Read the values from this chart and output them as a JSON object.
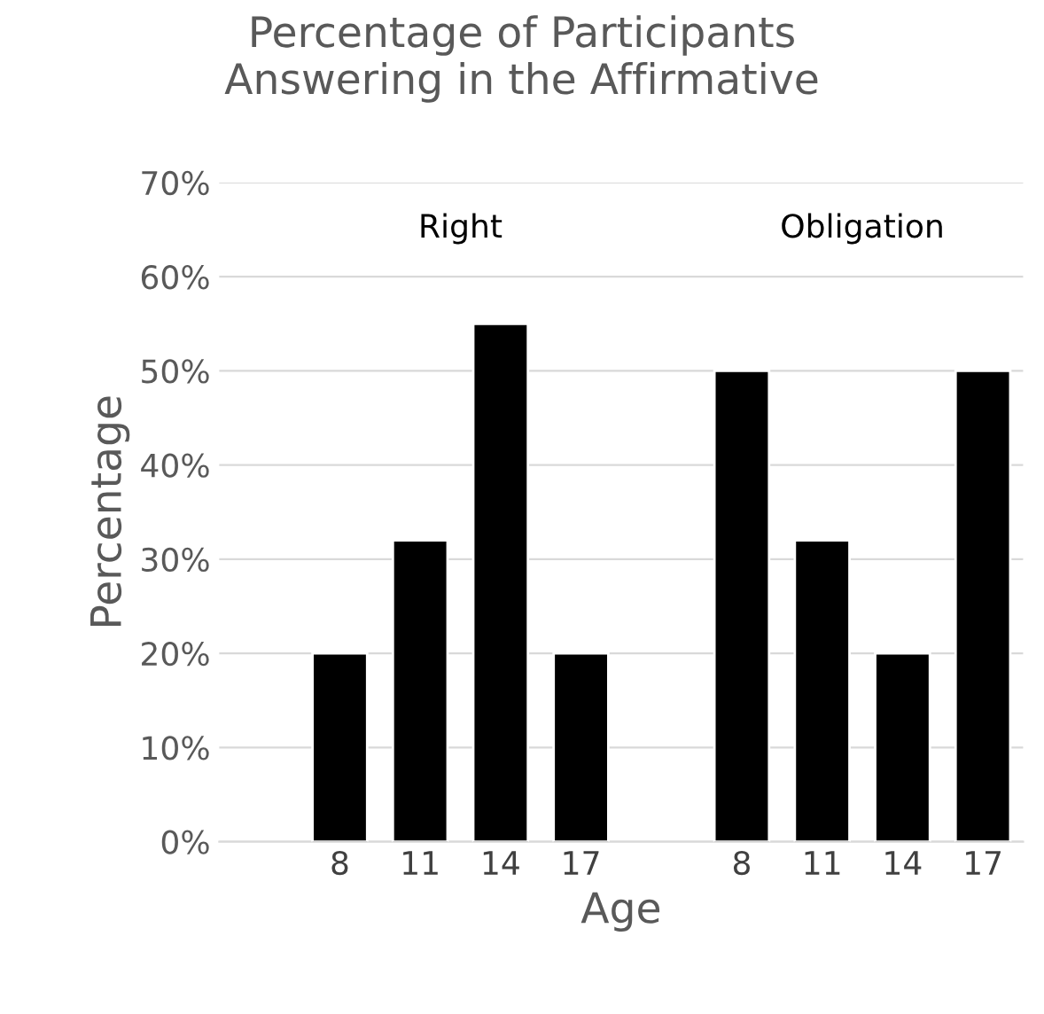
{
  "chart_data": {
    "type": "bar",
    "title": "Percentage of Participants\nAnswering in the Affirmative",
    "xlabel": "Age",
    "ylabel": "Percentage",
    "categories": [
      null,
      "8",
      "11",
      "14",
      "17",
      null,
      "8",
      "11",
      "14",
      "17"
    ],
    "values": [
      null,
      20,
      32,
      55,
      20,
      null,
      50,
      32,
      20,
      50
    ],
    "color": "#000000",
    "annotations": [
      "Right",
      "Obligation"
    ],
    "ylim": [
      0,
      70
    ],
    "yticks": [
      {
        "value": 0,
        "label": "0%"
      },
      {
        "value": 10,
        "label": "10%"
      },
      {
        "value": 20,
        "label": "20%"
      },
      {
        "value": 30,
        "label": "30%"
      },
      {
        "value": 40,
        "label": "40%"
      },
      {
        "value": 50,
        "label": "50%"
      },
      {
        "value": 60,
        "label": "60%"
      },
      {
        "value": 70,
        "label": "70%"
      }
    ],
    "grid": "y",
    "legend": false
  }
}
